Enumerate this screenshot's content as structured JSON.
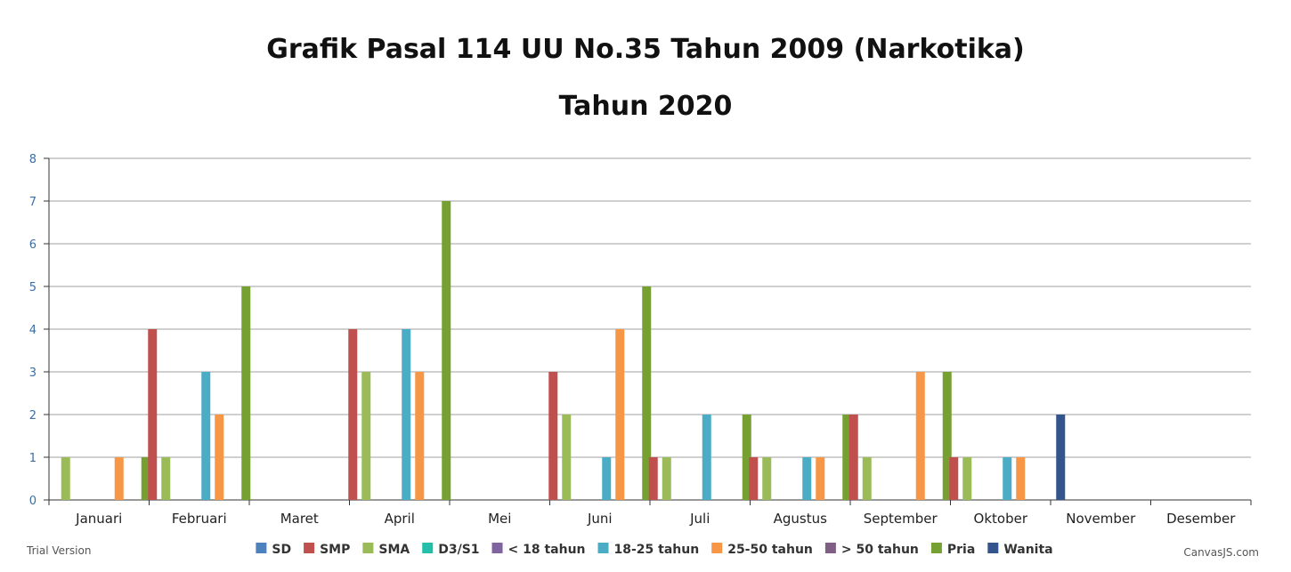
{
  "chart_data": {
    "type": "bar",
    "title": "Grafik Pasal 114 UU No.35 Tahun 2009 (Narkotika)",
    "subtitle": "Tahun 2020",
    "categories": [
      "Januari",
      "Februari",
      "Maret",
      "April",
      "Mei",
      "Juni",
      "Juli",
      "Agustus",
      "September",
      "Oktober",
      "November",
      "Desember"
    ],
    "ylim": [
      0,
      8
    ],
    "yticks": [
      0,
      1,
      2,
      3,
      4,
      5,
      6,
      7,
      8
    ],
    "grid": true,
    "legend_position": "bottom",
    "series": [
      {
        "name": "SD",
        "color": "#4f81bc",
        "values": [
          0,
          0,
          0,
          0,
          0,
          0,
          0,
          0,
          0,
          0,
          0,
          0
        ]
      },
      {
        "name": "SMP",
        "color": "#c0504e",
        "values": [
          0,
          4,
          0,
          4,
          0,
          3,
          1,
          1,
          2,
          1,
          0,
          0
        ]
      },
      {
        "name": "SMA",
        "color": "#9bbb58",
        "values": [
          1,
          1,
          0,
          3,
          0,
          2,
          1,
          1,
          1,
          1,
          0,
          0
        ]
      },
      {
        "name": "D3/S1",
        "color": "#23bfaa",
        "values": [
          0,
          0,
          0,
          0,
          0,
          0,
          0,
          0,
          0,
          0,
          0,
          0
        ]
      },
      {
        "name": "< 18 tahun",
        "color": "#8064a1",
        "values": [
          0,
          0,
          0,
          0,
          0,
          0,
          0,
          0,
          0,
          0,
          0,
          0
        ]
      },
      {
        "name": "18-25 tahun",
        "color": "#4aacc5",
        "values": [
          0,
          3,
          0,
          4,
          0,
          1,
          2,
          1,
          0,
          1,
          0,
          0
        ]
      },
      {
        "name": "25-50 tahun",
        "color": "#f79647",
        "values": [
          1,
          2,
          0,
          3,
          0,
          4,
          0,
          1,
          3,
          1,
          0,
          0
        ]
      },
      {
        "name": "> 50 tahun",
        "color": "#7f6084",
        "values": [
          0,
          0,
          0,
          0,
          0,
          0,
          0,
          0,
          0,
          0,
          0,
          0
        ]
      },
      {
        "name": "Pria",
        "color": "#77a033",
        "values": [
          1,
          5,
          0,
          7,
          0,
          5,
          2,
          2,
          3,
          0,
          0,
          0
        ]
      },
      {
        "name": "Wanita",
        "color": "#33558b",
        "values": [
          0,
          0,
          0,
          0,
          0,
          0,
          0,
          0,
          0,
          2,
          0,
          0
        ]
      }
    ]
  },
  "footer": {
    "trial": "Trial Version",
    "credit": "CanvasJS.com"
  }
}
